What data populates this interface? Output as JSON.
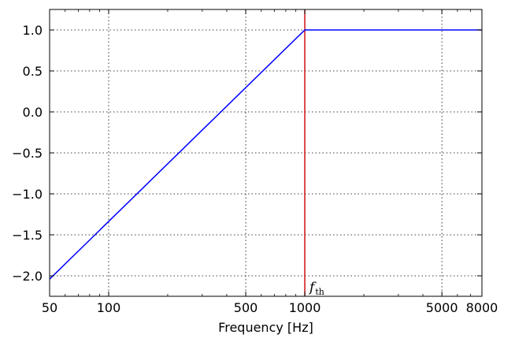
{
  "chart_data": {
    "type": "line",
    "title": "",
    "xlabel": "Frequency [Hz]",
    "ylabel": "",
    "xscale": "log",
    "xlim": [
      50,
      8000
    ],
    "ylim": [
      -2.25,
      1.25
    ],
    "grid": true,
    "x_ticks": [
      50,
      100,
      500,
      1000,
      5000,
      8000
    ],
    "x_tick_labels": [
      "50",
      "100",
      "500",
      "1000",
      "5000",
      "8000"
    ],
    "y_ticks": [
      -2.0,
      -1.5,
      -1.0,
      -0.5,
      0.0,
      0.5,
      1.0
    ],
    "y_tick_labels": [
      "−2.0",
      "−1.5",
      "−1.0",
      "−0.5",
      "0.0",
      "0.5",
      "1.0"
    ],
    "series": [
      {
        "color": "#0000ff",
        "x": [
          50,
          1000,
          8000
        ],
        "y": [
          -2.04,
          1.0,
          1.0
        ]
      }
    ],
    "vlines": [
      {
        "x": 1000,
        "color": "#cc0000",
        "label": "f",
        "label_sub": "th"
      }
    ]
  }
}
